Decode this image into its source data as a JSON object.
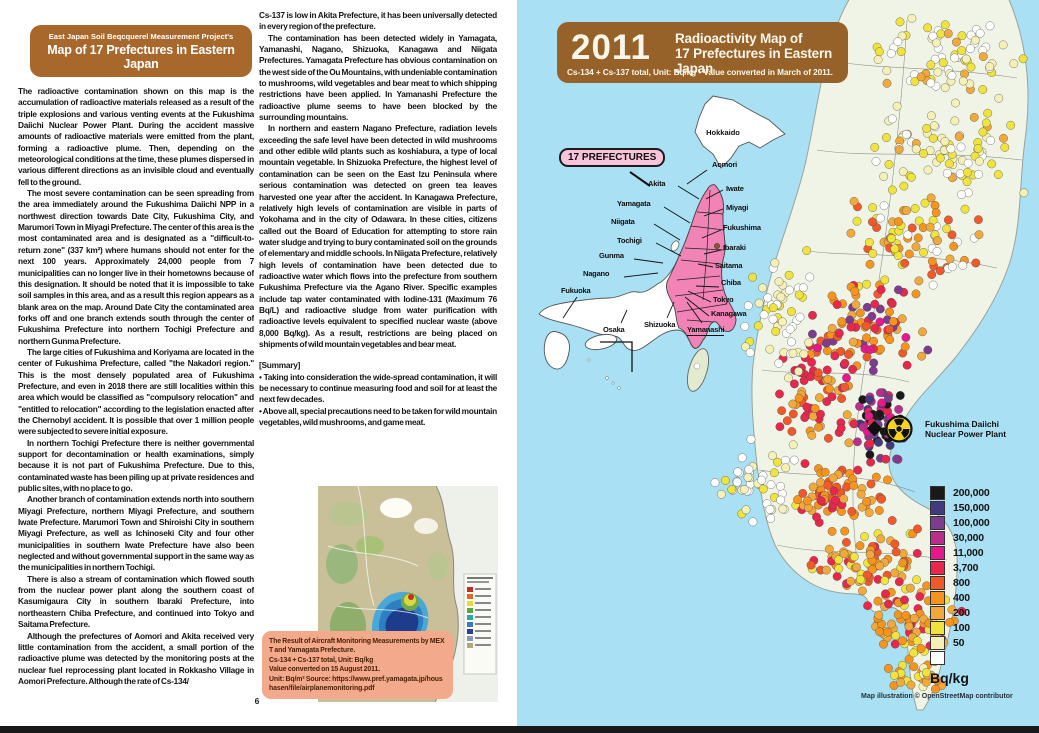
{
  "left_page": {
    "header": {
      "line1": "East Japan Soil Beqcquerel Measurement Project's",
      "line2": "Map of 17 Prefectures in Eastern Japan"
    },
    "col1_paragraphs": [
      "The radioactive contamination shown on this map is the accumulation of radioactive materials released as a result of the triple explosions and various venting events at the Fukushima Daiichi Nuclear Power Plant. During the accident massive amounts of radioactive materials were emitted from the plant, forming a radioactive plume. Then, depending on the meteorological conditions at the time, these plumes dispersed in various different directions as an invisible cloud and eventually fell to the ground.",
      "The most severe contamination can be seen spreading from the area immediately around the Fukushima Daiichi NPP in a northwest direction towards Date City, Fukushima City, and Marumori Town in Miyagi Prefecture. The center of this area is the most contaminated area and is designated as a \"difficult-to-return zone\" (337 km²) where humans should not enter for the next 100 years. Approximately 24,000 people from 7 municipalities can no longer live in their hometowns because of this designation. It should be noted that it is impossible to take soil samples in this area, and as a result this region appears as a blank area on the map. Around Date City the contaminated area forks off and one branch extends south through the center of Fukushima Prefecture into northern Tochigi Prefecture and northern Gunma Prefecture.",
      "The large cities of Fukushima and Koriyama are located in the center of Fukushima Prefecture, called \"the Nakadori region.\" This is the most densely populated area of Fukushima Prefecture, and even in 2018 there are still localities within this area which would be classified as \"compulsory relocation\" and \"entitled to relocation\" according to the legislation enacted after the Chernobyl accident. It is possible that over 1 million people were subjected to severe initial exposure.",
      "In northern Tochigi Prefecture there is neither governmental support for decontamination or health examinations, simply because it is not part of Fukushima Prefecture. Due to this, contaminated waste has been piling up at private residences and public sites, with no place to go.",
      "Another branch of contamination extends north into southern Miyagi Prefecture, northern Miyagi Prefecture, and southern Iwate Prefecture. Marumori Town and Shiroishi City in southern Miyagi Prefecture, as well as Ichinoseki City and four other municipalities in southern Iwate Prefecture have also been neglected and without governmental support in the same way as the municipalities in northern Tochigi.",
      "There is also a stream of contamination which flowed south from the nuclear power plant along the southern coast of Kasumigaura City in southern Ibaraki Prefecture, into northeastern Chiba Prefecture, and continued into Tokyo and Saitama Prefecture.",
      "Although the prefectures of Aomori and Akita received very little contamination from the accident, a small portion of the radioactive plume was detected by the monitoring posts at the nuclear fuel reprocessing plant located in Rokkasho Village in Aomori Prefecture. Although the rate of Cs-134/"
    ],
    "col2_paragraphs": [
      "Cs-137 is low in Akita Prefecture, it has been universally detected in every region of the prefecture.",
      "The contamination has been detected widely in Yamagata, Yamanashi, Nagano, Shizuoka, Kanagawa and Niigata Prefectures. Yamagata Prefecture has obvious contamination on the west side of the Ou Mountains, with undeniable contamination to mushrooms, wild vegetables and bear meat to which shipping restrictions have been applied. In Yamanashi Prefecture the radioactive plume seems to have been blocked by the surrounding mountains.",
      "In northern and eastern Nagano Prefecture, radiation levels exceeding the safe level have been detected in wild mushrooms and other edible wild plants such as koshiabura, a type of local mountain vegetable. In Shizuoka Prefecture, the highest level of contamination can be seen on the East Izu Peninsula where serious contamination was detected on green tea leaves harvested one year after the accident. In Kanagawa Prefecture, relatively high levels of contamination are visible in parts of Yokohama and in the city of Odawara. In these cities, citizens called out the Board of Education for attempting to store rain water sludge and trying to bury contaminated soil on the grounds of elementary and middle schools. In Niigata Prefecture, relatively high levels of contamination have been detected due to radioactive water which flows into the prefecture from southern Fukushima Prefecture via the Agano River. Specific examples include tap water contaminated with Iodine-131 (Maximum 76 Bq/L) and radioactive sludge from water purification with radioactive levels equivalent to specified nuclear waste (above 8,000 Bq/kg). As a result, restrictions are being placed on shipments of wild mountain vegetables and bear meat."
    ],
    "summary": {
      "title": "[Summary]",
      "bullets": [
        "• Taking into consideration the wide-spread contamination, it will be necessary to continue measuring food and soil for at least the next few decades.",
        "• Above all, special precautions need to be taken for wild mountain vegetables, wild mushrooms, and game meat."
      ]
    },
    "caption": {
      "lines": [
        "The Result of Aircraft Monitoring Measurements by MEXT and Yamagata Prefecture.",
        "Cs-134 + Cs-137 total, Unit: Bq/kg",
        "Value converted on 15 August 2011.",
        "Unit: Bq/m²  Source: https://www.pref.yamagata.jp/houshasen/file/airplanemonitoring.pdf"
      ]
    },
    "page_number": "6"
  },
  "right_page": {
    "header": {
      "year": "2011",
      "title_line1": "Radioactivity Map of",
      "title_line2": "17 Prefectures in Eastern Japan",
      "subtitle": "Cs-134 + Cs-137 total, Unit: Bq/kg  •  Value converted in March of 2011."
    },
    "callout": "17 PREFECTURES",
    "inset_labels": [
      "Hokkaido",
      "Aomori",
      "Akita",
      "Iwate",
      "Yamagata",
      "Miyagi",
      "Niigata",
      "Fukushima",
      "Tochigi",
      "Ibaraki",
      "Gunma",
      "Saitama",
      "Nagano",
      "Chiba",
      "Tokyo",
      "Kanagawa",
      "Shizuoka",
      "Yamanashi",
      "Osaka",
      "Fukuoka"
    ],
    "plant_label": {
      "line1": "Fukushima Daiichi",
      "line2": "Nuclear Power Plant"
    },
    "legend": {
      "unit": "Bq/kg",
      "entries": [
        {
          "value": "200,000",
          "color": "#191919"
        },
        {
          "value": "150,000",
          "color": "#43397f"
        },
        {
          "value": "100,000",
          "color": "#7e3c8f"
        },
        {
          "value": "30,000",
          "color": "#b92e8c"
        },
        {
          "value": "11,000",
          "color": "#e5198b"
        },
        {
          "value": "3,700",
          "color": "#e8274c"
        },
        {
          "value": "800",
          "color": "#f1592a"
        },
        {
          "value": "400",
          "color": "#f7941e"
        },
        {
          "value": "200",
          "color": "#f2a93c"
        },
        {
          "value": "100",
          "color": "#efe33e"
        },
        {
          "value": "50",
          "color": "#f4f0b6"
        },
        {
          "value": "",
          "color": "#ffffff"
        }
      ]
    },
    "footer": "Map illustration © OpenStreetMap contributor"
  },
  "colors": {
    "header_brown": "#a8682c",
    "map_header_brown": "#96622a",
    "sea_blue": "#a9e0f4",
    "prefecture_pink": "#f183b6",
    "callout_pink": "#f9c3d9",
    "caption_salmon": "#f3a98b",
    "radiation_yellow": "#f6d31c"
  }
}
